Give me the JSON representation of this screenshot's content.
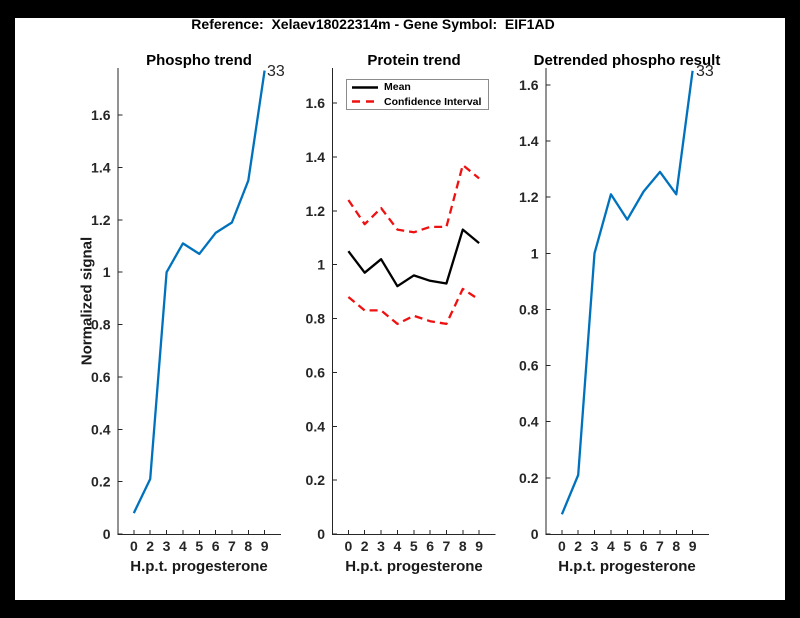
{
  "figure": {
    "title": "Reference:  Xelaev18022314m - Gene Symbol:  EIF1AD"
  },
  "colors": {
    "blue": "#0072bd",
    "red": "#ee1111",
    "black": "#000000",
    "axis": "#262626"
  },
  "chart_data": [
    {
      "type": "line",
      "title": "Phospho trend",
      "xlabel": "H.p.t. progesterone",
      "ylabel": "Normalized signal",
      "x_tick_labels": [
        "0",
        "2",
        "3",
        "4",
        "5",
        "6",
        "7",
        "8",
        "9"
      ],
      "y_ticks": [
        0,
        0.2,
        0.4,
        0.6,
        0.8,
        1,
        1.2,
        1.4,
        1.6
      ],
      "ylim": [
        0,
        1.78
      ],
      "grid": false,
      "series": [
        {
          "name": "phospho-signal",
          "color": "#0072bd",
          "style": "solid",
          "values": [
            0.08,
            0.21,
            1.0,
            1.11,
            1.07,
            1.15,
            1.19,
            1.35,
            1.77
          ]
        }
      ],
      "end_label": "33"
    },
    {
      "type": "line",
      "title": "Protein trend",
      "xlabel": "H.p.t. progesterone",
      "ylabel": "",
      "x_tick_labels": [
        "0",
        "2",
        "3",
        "4",
        "5",
        "6",
        "7",
        "8",
        "9"
      ],
      "y_ticks": [
        0,
        0.2,
        0.4,
        0.6,
        0.8,
        1,
        1.2,
        1.4,
        1.6
      ],
      "ylim": [
        0,
        1.73
      ],
      "grid": false,
      "series": [
        {
          "name": "confidence-interval-upper",
          "color": "#ee1111",
          "style": "dashed",
          "values": [
            1.24,
            1.15,
            1.21,
            1.13,
            1.12,
            1.14,
            1.14,
            1.37,
            1.32
          ]
        },
        {
          "name": "confidence-interval-lower",
          "color": "#ee1111",
          "style": "dashed",
          "values": [
            0.88,
            0.83,
            0.83,
            0.78,
            0.81,
            0.79,
            0.78,
            0.91,
            0.87
          ]
        },
        {
          "name": "mean",
          "color": "#000000",
          "style": "solid",
          "values": [
            1.05,
            0.97,
            1.02,
            0.92,
            0.96,
            0.94,
            0.93,
            1.13,
            1.08
          ]
        }
      ],
      "legend": {
        "position": "top-left",
        "entries": [
          {
            "label": "Mean",
            "color": "#000000",
            "style": "solid"
          },
          {
            "label": "Confidence Interval",
            "color": "#ee1111",
            "style": "dashed"
          }
        ]
      }
    },
    {
      "type": "line",
      "title": "Detrended phospho result",
      "xlabel": "H.p.t. progesterone",
      "ylabel": "",
      "x_tick_labels": [
        "0",
        "2",
        "3",
        "4",
        "5",
        "6",
        "7",
        "8",
        "9"
      ],
      "y_ticks": [
        0,
        0.2,
        0.4,
        0.6,
        0.8,
        1,
        1.2,
        1.4,
        1.6
      ],
      "ylim": [
        0,
        1.66
      ],
      "grid": false,
      "series": [
        {
          "name": "detrended-phospho",
          "color": "#0072bd",
          "style": "solid",
          "values": [
            0.07,
            0.21,
            1.0,
            1.21,
            1.12,
            1.22,
            1.29,
            1.21,
            1.65
          ]
        }
      ],
      "end_label": "33"
    }
  ]
}
